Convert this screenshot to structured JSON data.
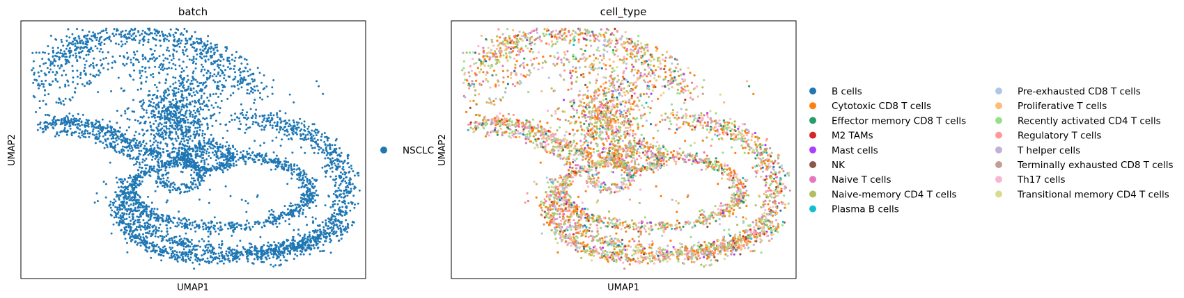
{
  "chart_data": [
    {
      "type": "scatter",
      "title": "batch",
      "xlabel": "UMAP1",
      "ylabel": "UMAP2",
      "xticks": "none",
      "yticks": "none",
      "grid": false,
      "legend_placement": "right",
      "legend": [
        {
          "label": "NSCLC",
          "color": "#1f77b4"
        }
      ],
      "point_color": "#1f77b4"
    },
    {
      "type": "scatter",
      "title": "cell_type",
      "xlabel": "UMAP1",
      "ylabel": "UMAP2",
      "xticks": "none",
      "yticks": "none",
      "grid": false,
      "legend_placement": "right",
      "legend": [
        {
          "label": "B cells",
          "color": "#1f77b4"
        },
        {
          "label": "Cytotoxic CD8 T cells",
          "color": "#ff7f0e"
        },
        {
          "label": "Effector memory CD8 T cells",
          "color": "#279e68"
        },
        {
          "label": "M2 TAMs",
          "color": "#d62728"
        },
        {
          "label": "Mast cells",
          "color": "#aa40fc"
        },
        {
          "label": "NK",
          "color": "#8c564b"
        },
        {
          "label": "Naive T cells",
          "color": "#e377c2"
        },
        {
          "label": "Naive-memory CD4 T cells",
          "color": "#b5bd61"
        },
        {
          "label": "Plasma B cells",
          "color": "#17becf"
        },
        {
          "label": "Pre-exhausted CD8 T cells",
          "color": "#aec7e8"
        },
        {
          "label": "Proliferative T cells",
          "color": "#ffbb78"
        },
        {
          "label": "Recently activated CD4 T cells",
          "color": "#98df8a"
        },
        {
          "label": "Regulatory T cells",
          "color": "#ff9896"
        },
        {
          "label": "T helper cells",
          "color": "#c5b0d5"
        },
        {
          "label": "Terminally exhausted CD8 T cells",
          "color": "#c49c94"
        },
        {
          "label": "Th17 cells",
          "color": "#f7b6d2"
        },
        {
          "label": "Transitional memory CD4 T cells",
          "color": "#dbdb8d"
        }
      ]
    }
  ]
}
